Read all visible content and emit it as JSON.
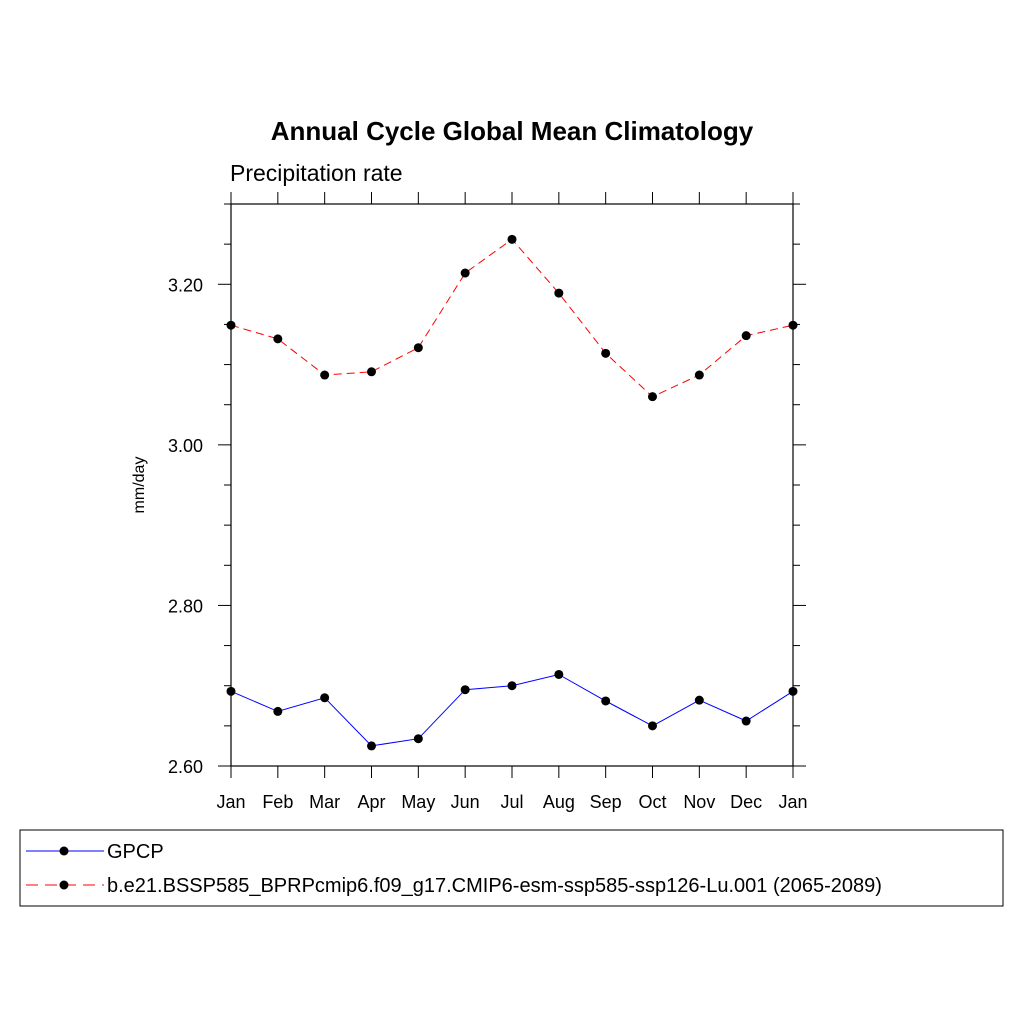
{
  "chart_data": {
    "type": "line",
    "title": "Annual Cycle Global Mean Climatology",
    "subtitle": "Precipitation rate",
    "xlabel": "",
    "ylabel": "mm/day",
    "categories": [
      "Jan",
      "Feb",
      "Mar",
      "Apr",
      "May",
      "Jun",
      "Jul",
      "Aug",
      "Sep",
      "Oct",
      "Nov",
      "Dec",
      "Jan"
    ],
    "ylim": [
      2.6,
      3.3
    ],
    "yticks": [
      2.6,
      2.8,
      3.0,
      3.2
    ],
    "ytick_labels": [
      "2.60",
      "2.80",
      "3.00",
      "3.20"
    ],
    "series": [
      {
        "name": "GPCP",
        "color": "#0000ff",
        "line_style": "solid",
        "values": [
          2.693,
          2.668,
          2.685,
          2.625,
          2.634,
          2.695,
          2.7,
          2.714,
          2.681,
          2.65,
          2.682,
          2.656,
          2.693
        ]
      },
      {
        "name": "b.e21.BSSP585_BPRPcmip6.f09_g17.CMIP6-esm-ssp585-ssp126-Lu.001 (2065-2089)",
        "color": "#ff0000",
        "line_style": "dashed",
        "values": [
          3.149,
          3.132,
          3.087,
          3.091,
          3.121,
          3.214,
          3.256,
          3.189,
          3.114,
          3.06,
          3.087,
          3.136,
          3.149
        ]
      }
    ],
    "legend_position": "bottom"
  }
}
